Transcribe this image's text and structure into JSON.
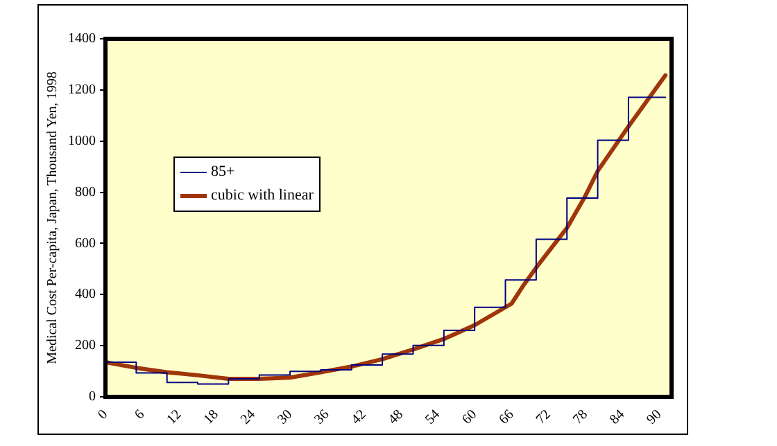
{
  "chart_data": {
    "type": "line",
    "ylabel": "Medical Cost Per-capita, Japan, Thousand Yen, 1998",
    "xlim": [
      0,
      92
    ],
    "xticks": [
      0,
      6,
      12,
      18,
      24,
      30,
      36,
      42,
      48,
      54,
      60,
      66,
      72,
      78,
      84,
      90
    ],
    "ylim": [
      0,
      1400
    ],
    "yticks": [
      0,
      200,
      400,
      600,
      800,
      1000,
      1200,
      1400
    ],
    "grid": false,
    "legend": "left",
    "marker": "none",
    "series": [
      {
        "name": "85+",
        "type": "step",
        "color": "#000080",
        "x": [
          0,
          5,
          10,
          15,
          20,
          25,
          30,
          35,
          40,
          45,
          50,
          55,
          60,
          65,
          70,
          75,
          80,
          85,
          91
        ],
        "values": [
          135,
          93,
          56,
          50,
          70,
          85,
          99,
          105,
          124,
          167,
          201,
          260,
          350,
          457,
          616,
          777,
          1003,
          1171,
          1171
        ]
      },
      {
        "name": "cubic with linear",
        "type": "line",
        "color": "#a0350a",
        "x": [
          0,
          5,
          10,
          15,
          20,
          25,
          30,
          35,
          40,
          45,
          50,
          55,
          60,
          66,
          68,
          70,
          75,
          78,
          80,
          85,
          91
        ],
        "values": [
          135,
          113,
          96,
          84,
          70,
          70,
          75,
          96,
          118,
          147,
          185,
          226,
          280,
          364,
          438,
          505,
          660,
          786,
          883,
          1057,
          1257
        ]
      }
    ]
  }
}
